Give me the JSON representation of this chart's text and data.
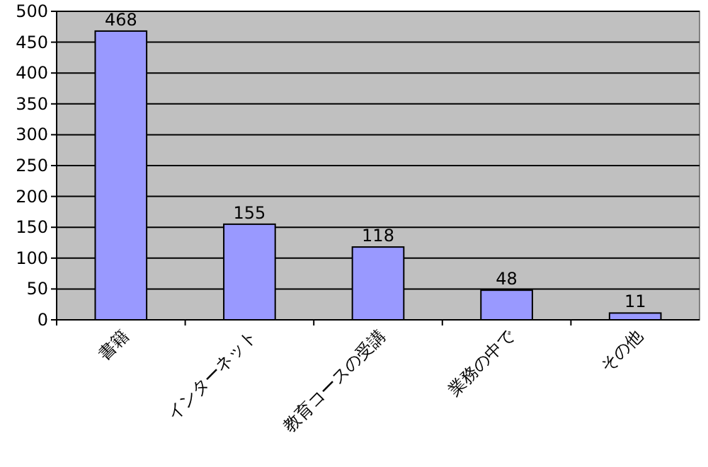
{
  "chart_data": {
    "type": "bar",
    "categories": [
      "書籍",
      "インターネット",
      "教育コースの受講",
      "業務の中で",
      "その他"
    ],
    "values": [
      468,
      155,
      118,
      48,
      11
    ],
    "color": "#9999ff",
    "ylim": [
      0,
      500
    ],
    "yticks": [
      0,
      50,
      100,
      150,
      200,
      250,
      300,
      350,
      400,
      450,
      500
    ],
    "grid": "y",
    "data_labels": true
  }
}
